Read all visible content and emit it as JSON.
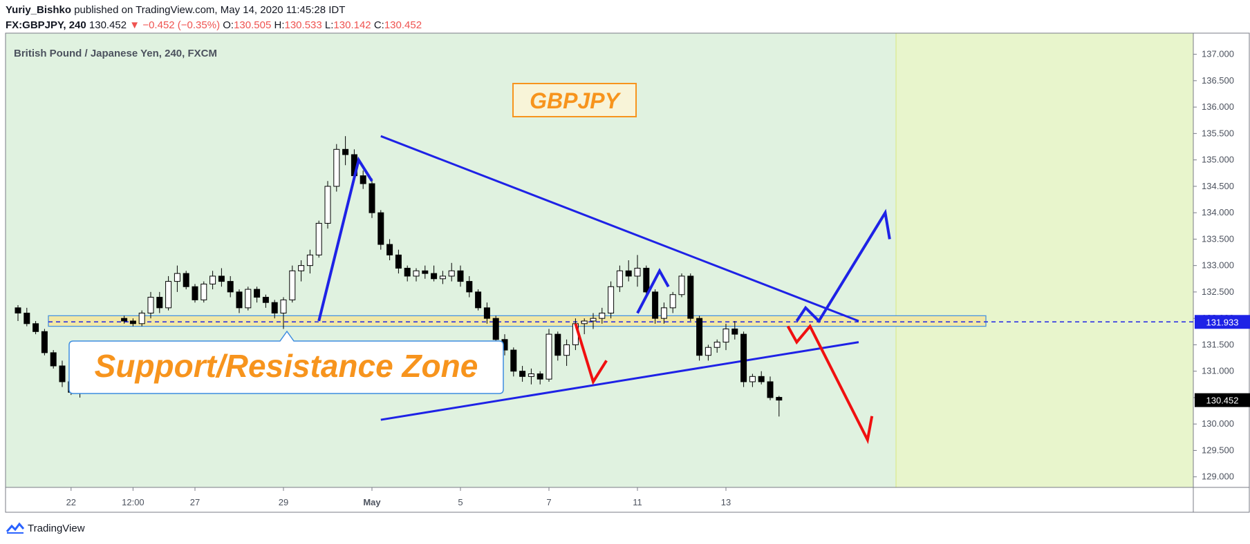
{
  "header": {
    "author": "Yuriy_Bishko",
    "published": "published on TradingView.com, May 14, 2020 11:45:28 IDT",
    "symbol": "FX:GBPJPY, 240",
    "last": "130.452",
    "change": "−0.452 (−0.35%)",
    "o_label": "O:",
    "o_value": "130.505",
    "h_label": "H:",
    "h_value": "130.533",
    "l_label": "L:",
    "l_value": "130.142",
    "c_label": "C:",
    "c_value": "130.452"
  },
  "footer": {
    "brand": "TradingView"
  },
  "chart_data": {
    "type": "candlestick",
    "title": "British Pound / Japanese Yen, 240, FXCM",
    "watermark_label": "GBPJPY",
    "zone_label": "Support/Resistance Zone",
    "y_ticks": [
      "137.000",
      "136.500",
      "136.000",
      "135.500",
      "135.000",
      "134.500",
      "134.000",
      "133.500",
      "133.000",
      "132.500",
      "132.000",
      "131.500",
      "131.000",
      "130.500",
      "130.000",
      "129.500",
      "129.000"
    ],
    "ylim": [
      128.8,
      137.4
    ],
    "x_ticks": [
      {
        "label": "22",
        "i": 6
      },
      {
        "label": "12:00",
        "i": 13
      },
      {
        "label": "27",
        "i": 20
      },
      {
        "label": "29",
        "i": 30
      },
      {
        "label": "May",
        "i": 40
      },
      {
        "label": "5",
        "i": 50
      },
      {
        "label": "7",
        "i": 60
      },
      {
        "label": "11",
        "i": 70
      },
      {
        "label": "13",
        "i": 80
      }
    ],
    "price_tags": [
      {
        "value": 131.933,
        "label": "131.933",
        "color": "#1e22e6"
      },
      {
        "value": 130.452,
        "label": "130.452",
        "color": "#000000"
      }
    ],
    "support_zone": {
      "low": 131.85,
      "high": 132.05,
      "line": 131.933
    },
    "colors": {
      "bg_left": "#e0f2e0",
      "bg_right": "#e8f5cc",
      "zone": "#f1e8a6",
      "up": "#ffffff",
      "down": "#000000",
      "trend": "#1e22e6",
      "bear": "#f01010",
      "label_orange": "#f7941d"
    },
    "candles": [
      [
        132.2,
        132.25,
        131.95,
        132.1
      ],
      [
        132.1,
        132.2,
        131.85,
        131.9
      ],
      [
        131.9,
        131.95,
        131.7,
        131.75
      ],
      [
        131.75,
        131.8,
        131.3,
        131.35
      ],
      [
        131.35,
        131.4,
        131.05,
        131.1
      ],
      [
        131.1,
        131.2,
        130.7,
        130.8
      ],
      [
        130.8,
        130.85,
        130.55,
        130.6
      ],
      [
        130.6,
        130.9,
        130.5,
        130.85
      ],
      [
        130.85,
        131.05,
        130.75,
        130.95
      ],
      [
        130.95,
        131.1,
        130.85,
        131.05
      ],
      [
        131.05,
        131.3,
        130.95,
        131.25
      ],
      [
        131.25,
        131.35,
        131.0,
        131.1
      ],
      [
        132.0,
        132.05,
        131.9,
        131.95
      ],
      [
        131.95,
        132.0,
        131.85,
        131.9
      ],
      [
        131.9,
        132.15,
        131.85,
        132.1
      ],
      [
        132.1,
        132.5,
        132.0,
        132.4
      ],
      [
        132.4,
        132.5,
        132.1,
        132.2
      ],
      [
        132.2,
        132.8,
        132.15,
        132.7
      ],
      [
        132.7,
        133.0,
        132.5,
        132.85
      ],
      [
        132.85,
        132.9,
        132.55,
        132.6
      ],
      [
        132.6,
        132.65,
        132.3,
        132.35
      ],
      [
        132.35,
        132.7,
        132.3,
        132.65
      ],
      [
        132.65,
        132.9,
        132.55,
        132.8
      ],
      [
        132.8,
        132.95,
        132.6,
        132.7
      ],
      [
        132.7,
        132.8,
        132.4,
        132.5
      ],
      [
        132.5,
        132.55,
        132.1,
        132.2
      ],
      [
        132.2,
        132.6,
        132.15,
        132.55
      ],
      [
        132.55,
        132.6,
        132.3,
        132.4
      ],
      [
        132.4,
        132.45,
        132.2,
        132.3
      ],
      [
        132.3,
        132.35,
        132.0,
        132.1
      ],
      [
        132.1,
        132.4,
        131.8,
        132.35
      ],
      [
        132.35,
        133.0,
        132.3,
        132.9
      ],
      [
        132.9,
        133.1,
        132.7,
        133.0
      ],
      [
        133.0,
        133.3,
        132.85,
        133.2
      ],
      [
        133.2,
        133.85,
        133.15,
        133.8
      ],
      [
        133.8,
        134.6,
        133.7,
        134.5
      ],
      [
        134.5,
        135.3,
        134.4,
        135.2
      ],
      [
        135.2,
        135.45,
        134.9,
        135.1
      ],
      [
        135.1,
        135.2,
        134.6,
        134.7
      ],
      [
        134.7,
        134.8,
        134.45,
        134.55
      ],
      [
        134.55,
        134.65,
        133.9,
        134.0
      ],
      [
        134.0,
        134.05,
        133.3,
        133.4
      ],
      [
        133.4,
        133.5,
        133.1,
        133.2
      ],
      [
        133.2,
        133.3,
        132.85,
        132.95
      ],
      [
        132.95,
        133.0,
        132.7,
        132.8
      ],
      [
        132.8,
        132.95,
        132.7,
        132.9
      ],
      [
        132.9,
        133.0,
        132.75,
        132.85
      ],
      [
        132.85,
        133.0,
        132.7,
        132.75
      ],
      [
        132.75,
        132.9,
        132.65,
        132.8
      ],
      [
        132.8,
        133.05,
        132.7,
        132.9
      ],
      [
        132.9,
        133.0,
        132.6,
        132.7
      ],
      [
        132.7,
        132.8,
        132.4,
        132.5
      ],
      [
        132.5,
        132.55,
        132.15,
        132.2
      ],
      [
        132.2,
        132.3,
        131.9,
        132.0
      ],
      [
        132.0,
        132.05,
        131.5,
        131.6
      ],
      [
        131.6,
        131.7,
        131.3,
        131.4
      ],
      [
        131.4,
        131.45,
        130.9,
        131.0
      ],
      [
        131.0,
        131.1,
        130.8,
        130.9
      ],
      [
        130.9,
        131.05,
        130.75,
        130.95
      ],
      [
        130.95,
        131.0,
        130.75,
        130.85
      ],
      [
        130.85,
        131.8,
        130.8,
        131.7
      ],
      [
        131.7,
        131.75,
        131.2,
        131.3
      ],
      [
        131.3,
        131.6,
        131.1,
        131.5
      ],
      [
        131.5,
        132.0,
        131.4,
        131.9
      ],
      [
        131.9,
        132.0,
        131.7,
        131.95
      ],
      [
        131.95,
        132.1,
        131.8,
        132.0
      ],
      [
        132.0,
        132.2,
        131.9,
        132.1
      ],
      [
        132.1,
        132.7,
        132.0,
        132.6
      ],
      [
        132.6,
        133.0,
        132.5,
        132.9
      ],
      [
        132.9,
        133.1,
        132.7,
        132.8
      ],
      [
        132.8,
        133.2,
        132.6,
        132.95
      ],
      [
        132.95,
        133.0,
        132.4,
        132.5
      ],
      [
        132.5,
        132.55,
        131.9,
        132.0
      ],
      [
        132.0,
        132.3,
        131.9,
        132.2
      ],
      [
        132.2,
        132.5,
        132.1,
        132.45
      ],
      [
        132.45,
        132.85,
        132.4,
        132.8
      ],
      [
        132.8,
        132.85,
        131.95,
        132.0
      ],
      [
        132.0,
        132.05,
        131.2,
        131.3
      ],
      [
        131.3,
        131.5,
        131.2,
        131.45
      ],
      [
        131.45,
        131.6,
        131.35,
        131.55
      ],
      [
        131.55,
        131.9,
        131.4,
        131.8
      ],
      [
        131.8,
        131.95,
        131.6,
        131.7
      ],
      [
        131.7,
        131.75,
        130.7,
        130.8
      ],
      [
        130.8,
        130.95,
        130.7,
        130.9
      ],
      [
        130.9,
        131.0,
        130.75,
        130.8
      ],
      [
        130.8,
        130.9,
        130.45,
        130.5
      ],
      [
        130.505,
        130.533,
        130.142,
        130.452
      ]
    ],
    "drawings": {
      "triangle_upper": [
        [
          135.45,
          41
        ],
        [
          131.95,
          95
        ]
      ],
      "triangle_lower": [
        [
          130.08,
          41
        ],
        [
          131.55,
          95
        ]
      ],
      "blue_arrows": [
        [
          [
            131.95,
            34
          ],
          [
            135.0,
            38.5
          ],
          [
            134.6,
            40
          ]
        ],
        [
          [
            132.1,
            70
          ],
          [
            132.9,
            72.5
          ],
          [
            132.6,
            73.5
          ]
        ],
        [
          [
            131.95,
            88
          ],
          [
            132.2,
            89
          ],
          [
            131.95,
            90.5
          ],
          [
            134.0,
            98
          ],
          [
            133.5,
            98.5
          ]
        ]
      ],
      "red_arrows": [
        [
          [
            131.9,
            63
          ],
          [
            130.8,
            65
          ],
          [
            131.2,
            66.5
          ]
        ],
        [
          [
            131.85,
            87
          ],
          [
            131.55,
            88
          ],
          [
            131.85,
            89.5
          ],
          [
            129.7,
            96
          ],
          [
            130.15,
            96.5
          ]
        ]
      ]
    }
  }
}
